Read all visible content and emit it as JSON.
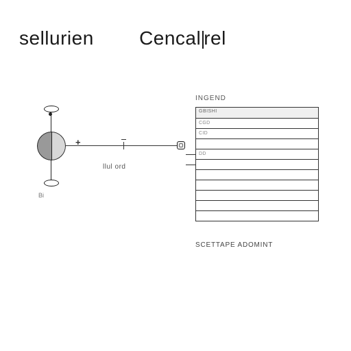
{
  "title": {
    "word1": "sellurien",
    "word2": "Cencal",
    "word3": "rel"
  },
  "diagram": {
    "legend_label": "INGEND",
    "panel": {
      "header_label": "GBISHI",
      "num_data_rows": 10,
      "row_markers": [
        "CGD",
        "CID",
        "",
        "DD",
        "",
        "",
        "",
        "",
        "",
        ""
      ]
    },
    "connector_label": "llul ord",
    "plus_symbol": "+",
    "left_sublabel": "Bi",
    "bottom_label": "SCETTAPE  ADOMINT",
    "colors": {
      "background": "#ffffff",
      "line": "#333333",
      "text_primary": "#1a1a1a",
      "text_secondary": "#555555",
      "body_left": "#999999",
      "body_right": "#d8d8d8"
    }
  }
}
